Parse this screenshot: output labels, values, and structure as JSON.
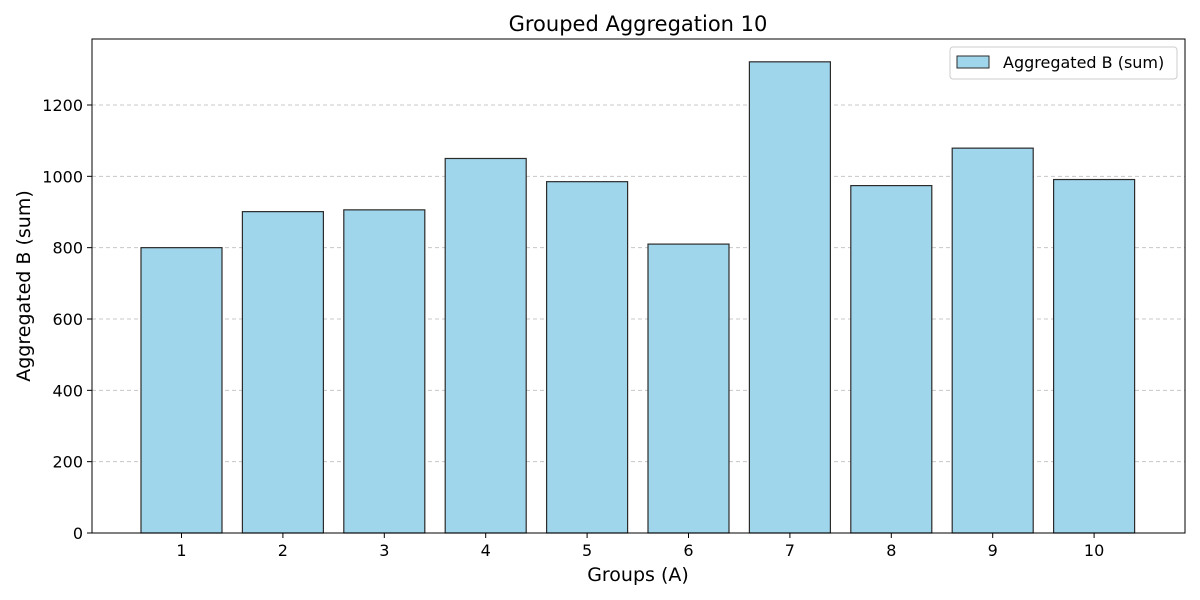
{
  "chart_data": {
    "type": "bar",
    "title": "Grouped Aggregation 10",
    "xlabel": "Groups (A)",
    "ylabel": "Aggregated B (sum)",
    "categories": [
      "1",
      "2",
      "3",
      "4",
      "5",
      "6",
      "7",
      "8",
      "9",
      "10"
    ],
    "series": [
      {
        "name": "Aggregated B (sum)",
        "values": [
          800,
          901,
          906,
          1050,
          985,
          810,
          1321,
          974,
          1079,
          991
        ]
      }
    ],
    "ylim": [
      0,
      1385
    ],
    "yticks": [
      0,
      200,
      400,
      600,
      800,
      1000,
      1200
    ],
    "grid": "y-dashed",
    "legend_position": "top-right",
    "colors": {
      "bar_fill": "#a0d6ec",
      "bar_edge": "#2b2b2b",
      "grid": "#c8c8c8",
      "axis": "#000000"
    }
  }
}
